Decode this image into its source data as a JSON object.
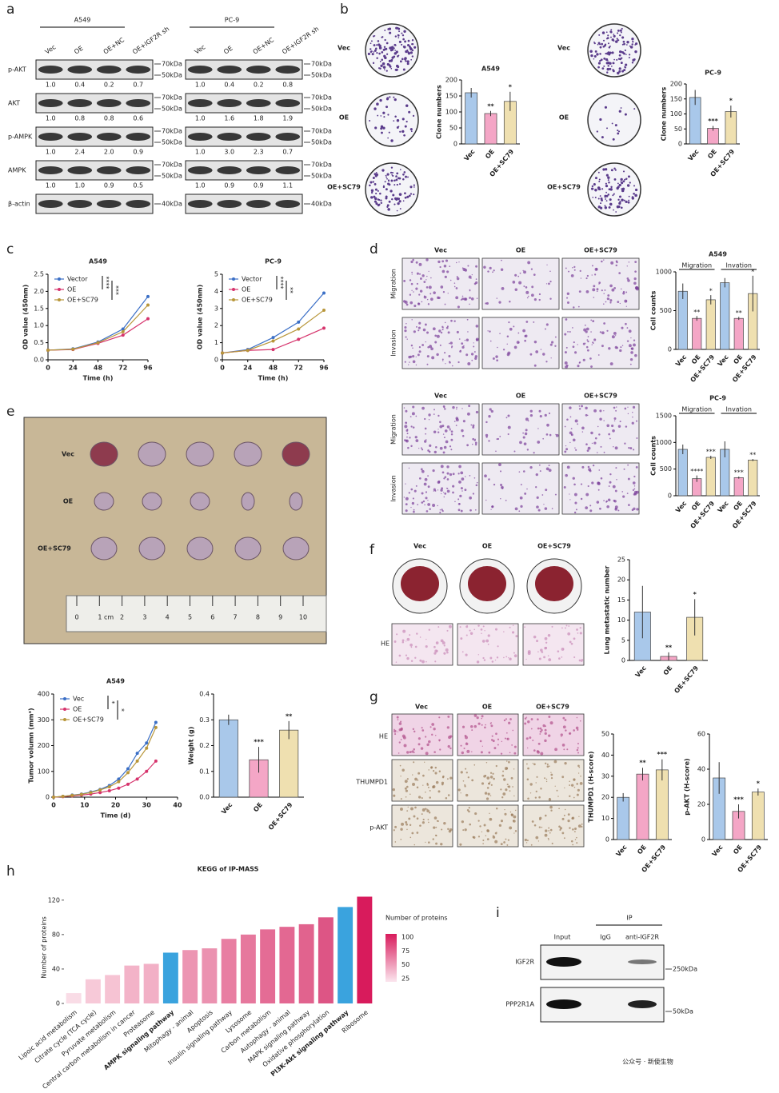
{
  "panels": {
    "a": {
      "letter": "a",
      "groups": [
        {
          "title": "A549",
          "lanes": [
            "Vec",
            "OE",
            "OE+NC",
            "OE+IGF2R sh"
          ],
          "rows": [
            {
              "label": "p-AKT",
              "markers": [
                "70kDa",
                "50kDa"
              ],
              "quant": [
                "1.0",
                "0.4",
                "0.2",
                "0.7"
              ]
            },
            {
              "label": "AKT",
              "markers": [
                "70kDa",
                "50kDa"
              ],
              "quant": [
                "1.0",
                "0.8",
                "0.8",
                "0.6"
              ]
            },
            {
              "label": "p-AMPK",
              "markers": [
                "70kDa",
                "50kDa"
              ],
              "quant": [
                "1.0",
                "2.4",
                "2.0",
                "0.9"
              ]
            },
            {
              "label": "AMPK",
              "markers": [
                "70kDa",
                "50kDa"
              ],
              "quant": [
                "1.0",
                "1.0",
                "0.9",
                "0.5"
              ]
            },
            {
              "label": "β-actin",
              "markers": [
                "40kDa"
              ]
            }
          ]
        },
        {
          "title": "PC-9",
          "lanes": [
            "Vec",
            "OE",
            "OE+NC",
            "OE+IGF2R sh"
          ],
          "rows": [
            {
              "markers": [
                "70kDa",
                "50kDa"
              ],
              "quant": [
                "1.0",
                "0.4",
                "0.2",
                "0.8"
              ]
            },
            {
              "markers": [
                "70kDa",
                "50kDa"
              ],
              "quant": [
                "1.0",
                "1.6",
                "1.8",
                "1.9"
              ]
            },
            {
              "markers": [
                "70kDa",
                "50kDa"
              ],
              "quant": [
                "1.0",
                "3.0",
                "2.3",
                "0.7"
              ]
            },
            {
              "markers": [
                "70kDa",
                "50kDa"
              ],
              "quant": [
                "1.0",
                "0.9",
                "0.9",
                "1.1"
              ]
            },
            {
              "markers": [
                "40kDa"
              ]
            }
          ]
        }
      ]
    },
    "b": {
      "letter": "b",
      "groups": [
        {
          "dish_labels": [
            "Vec",
            "OE",
            "OE+SC79"
          ],
          "chart": {
            "type": "bar",
            "title": "A549",
            "ylabel": "Clone numbers",
            "categories": [
              "Vec",
              "OE",
              "OE+SC79"
            ],
            "values": [
              160,
              95,
              133
            ],
            "errors": [
              15,
              8,
              30
            ],
            "significance": [
              null,
              "**",
              "*"
            ],
            "colors": [
              "#a9c8ea",
              "#f4a6c6",
              "#efe0b0"
            ],
            "ylim": [
              0,
              200
            ],
            "yticks": [
              0,
              50,
              100,
              150,
              200
            ]
          }
        },
        {
          "dish_labels": [
            "Vec",
            "OE",
            "OE+SC79"
          ],
          "chart": {
            "type": "bar",
            "title": "PC-9",
            "ylabel": "Clone numbers",
            "categories": [
              "Vec",
              "OE",
              "OE+SC79"
            ],
            "values": [
              155,
              52,
              108
            ],
            "errors": [
              25,
              8,
              20
            ],
            "significance": [
              null,
              "***",
              "*"
            ],
            "colors": [
              "#a9c8ea",
              "#f4a6c6",
              "#efe0b0"
            ],
            "ylim": [
              0,
              200
            ],
            "yticks": [
              0,
              50,
              100,
              150,
              200
            ]
          }
        }
      ]
    },
    "c": {
      "letter": "c",
      "charts": [
        {
          "type": "line",
          "title": "A549",
          "xlabel": "Time (h)",
          "ylabel": "OD value (450nm)",
          "x": [
            0,
            24,
            48,
            72,
            96
          ],
          "xlim": [
            0,
            96
          ],
          "xticks": [
            0,
            24,
            48,
            72,
            96
          ],
          "ylim": [
            0,
            2.5
          ],
          "yticks": [
            {
              "value": 0,
              "label": "0.0"
            },
            0.5,
            {
              "value": 1,
              "label": "1.0"
            },
            1.5,
            {
              "value": 2,
              "label": "2.0"
            },
            2.5
          ],
          "series": [
            {
              "name": "Vector",
              "color": "#3b6fc6",
              "values": [
                0.28,
                0.32,
                0.52,
                0.9,
                1.85
              ]
            },
            {
              "name": "OE",
              "color": "#d6336c",
              "values": [
                0.28,
                0.3,
                0.48,
                0.72,
                1.2
              ]
            },
            {
              "name": "OE+SC79",
              "color": "#b8963a",
              "values": [
                0.28,
                0.31,
                0.5,
                0.82,
                1.6
              ]
            }
          ],
          "significance": [
            "****",
            "***"
          ]
        },
        {
          "type": "line",
          "title": "PC-9",
          "xlabel": "Time (h)",
          "ylabel": "OD value (450nm)",
          "x": [
            0,
            24,
            48,
            72,
            96
          ],
          "xlim": [
            0,
            96
          ],
          "xticks": [
            0,
            24,
            48,
            72,
            96
          ],
          "ylim": [
            0,
            5
          ],
          "yticks": [
            0,
            1,
            2,
            3,
            4,
            5
          ],
          "series": [
            {
              "name": "Vector",
              "color": "#3b6fc6",
              "values": [
                0.4,
                0.6,
                1.3,
                2.2,
                3.9
              ]
            },
            {
              "name": "OE",
              "color": "#d6336c",
              "values": [
                0.4,
                0.55,
                0.6,
                1.2,
                1.85
              ]
            },
            {
              "name": "OE+SC79",
              "color": "#b8963a",
              "values": [
                0.4,
                0.55,
                1.1,
                1.8,
                2.9
              ]
            }
          ],
          "significance": [
            "****",
            "**"
          ]
        }
      ]
    },
    "d": {
      "letter": "d",
      "sets": [
        {
          "columns": [
            "Vec",
            "OE",
            "OE+SC79"
          ],
          "rows": [
            "Migration",
            "Invasion"
          ],
          "chart": {
            "type": "grouped_bar",
            "title": "A549",
            "ylabel": "Cell counts",
            "categories": [
              "Vec",
              "OE",
              "OE+SC79"
            ],
            "colors": [
              "#a9c8ea",
              "#f4a6c6",
              "#efe0b0"
            ],
            "groups": [
              {
                "name": "Migration",
                "values": [
                  750,
                  400,
                  640
                ],
                "errors": [
                  100,
                  30,
                  60
                ],
                "significance": [
                  null,
                  "**",
                  "*"
                ]
              },
              {
                "name": "Invation",
                "values": [
                  860,
                  400,
                  720
                ],
                "errors": [
                  60,
                  20,
                  230
                ],
                "significance": [
                  null,
                  "**",
                  "*"
                ]
              }
            ],
            "ylim": [
              0,
              1000
            ],
            "yticks": [
              0,
              500,
              1000
            ]
          }
        },
        {
          "columns": [
            "Vec",
            "OE",
            "OE+SC79"
          ],
          "rows": [
            "Migration",
            "Invasion"
          ],
          "chart": {
            "type": "grouped_bar",
            "title": "PC-9",
            "ylabel": "Cell counts",
            "categories": [
              "Vec",
              "OE",
              "OE+SC79"
            ],
            "colors": [
              "#a9c8ea",
              "#f4a6c6",
              "#efe0b0"
            ],
            "groups": [
              {
                "name": "Migration",
                "values": [
                  870,
                  320,
                  720
                ],
                "errors": [
                  90,
                  60,
                  30
                ],
                "significance": [
                  null,
                  "****",
                  "***"
                ]
              },
              {
                "name": "Invation",
                "values": [
                  870,
                  340,
                  670
                ],
                "errors": [
                  150,
                  20,
                  20
                ],
                "significance": [
                  null,
                  "***",
                  "**"
                ]
              }
            ],
            "ylim": [
              0,
              1500
            ],
            "yticks": [
              0,
              500,
              1000,
              1500
            ]
          }
        }
      ]
    },
    "e": {
      "letter": "e",
      "photo_labels": [
        "Vec",
        "OE",
        "OE+SC79"
      ],
      "ruler": [
        "0",
        "1 cm",
        "2",
        "3",
        "4",
        "5",
        "6",
        "7",
        "8",
        "9",
        "10"
      ],
      "volume_chart": {
        "type": "line",
        "title": "A549",
        "xlabel": "Time (d)",
        "ylabel": "Tumor volumn (mm³)",
        "x": [
          0,
          3,
          6,
          9,
          12,
          15,
          18,
          21,
          24,
          27,
          30,
          33
        ],
        "xlim": [
          0,
          40
        ],
        "xticks": [
          0,
          10,
          20,
          30,
          40
        ],
        "ylim": [
          0,
          400
        ],
        "yticks": [
          0,
          100,
          200,
          300,
          400
        ],
        "series": [
          {
            "name": "Vec",
            "color": "#3b6fc6",
            "values": [
              0,
              3,
              8,
              12,
              20,
              30,
              45,
              70,
              110,
              170,
              210,
              290
            ]
          },
          {
            "name": "OE",
            "color": "#d6336c",
            "values": [
              0,
              2,
              5,
              8,
              12,
              18,
              25,
              35,
              50,
              70,
              100,
              140
            ]
          },
          {
            "name": "OE+SC79",
            "color": "#b8963a",
            "values": [
              0,
              3,
              7,
              11,
              18,
              28,
              40,
              60,
              95,
              140,
              190,
              270
            ]
          }
        ],
        "significance": [
          "*",
          "*"
        ]
      },
      "weight_chart": {
        "type": "bar",
        "ylabel": "Weight (g)",
        "categories": [
          "Vec",
          "OE",
          "OE+SC79"
        ],
        "values": [
          0.3,
          0.145,
          0.26
        ],
        "errors": [
          0.02,
          0.05,
          0.035
        ],
        "significance": [
          null,
          "***",
          "**"
        ],
        "colors": [
          "#a9c8ea",
          "#f4a6c6",
          "#efe0b0"
        ],
        "ylim": [
          0,
          0.4
        ],
        "yticks": [
          {
            "value": 0,
            "label": "0.0"
          },
          0.1,
          0.2,
          0.3,
          0.4
        ]
      }
    },
    "f": {
      "letter": "f",
      "columns": [
        "Vec",
        "OE",
        "OE+SC79"
      ],
      "row_label": "HE",
      "chart": {
        "type": "bar",
        "ylabel": "Lung metastatic number",
        "categories": [
          "Vec",
          "OE",
          "OE+SC79"
        ],
        "values": [
          12,
          1,
          10.7
        ],
        "errors": [
          6.5,
          1,
          4.5
        ],
        "significance": [
          null,
          "**",
          "*"
        ],
        "colors": [
          "#a9c8ea",
          "#f4a6c6",
          "#efe0b0"
        ],
        "ylim": [
          0,
          25
        ],
        "yticks": [
          0,
          5,
          10,
          15,
          20,
          25
        ]
      }
    },
    "g": {
      "letter": "g",
      "columns": [
        "Vec",
        "OE",
        "OE+SC79"
      ],
      "rows": [
        "HE",
        "THUMPD1",
        "p-AKT"
      ],
      "charts": [
        {
          "type": "bar",
          "ylabel": "THUMPD1 (H-score)",
          "categories": [
            "Vec",
            "OE",
            "OE+SC79"
          ],
          "values": [
            20,
            31,
            33
          ],
          "errors": [
            2,
            3,
            5
          ],
          "significance": [
            null,
            "**",
            "***"
          ],
          "colors": [
            "#a9c8ea",
            "#f4a6c6",
            "#efe0b0"
          ],
          "ylim": [
            0,
            50
          ],
          "yticks": [
            0,
            10,
            20,
            30,
            40,
            50
          ]
        },
        {
          "type": "bar",
          "ylabel": "p-AKT (H-score)",
          "categories": [
            "Vec",
            "OE",
            "OE+SC79"
          ],
          "values": [
            35,
            16,
            27
          ],
          "errors": [
            9,
            4,
            2
          ],
          "significance": [
            null,
            "***",
            "*"
          ],
          "colors": [
            "#a9c8ea",
            "#f4a6c6",
            "#efe0b0"
          ],
          "ylim": [
            0,
            60
          ],
          "yticks": [
            0,
            20,
            40,
            60
          ]
        }
      ]
    },
    "h": {
      "letter": "h",
      "chart": {
        "type": "bar",
        "title": "KEGG of IP-MASS",
        "ylabel": "Number of proteins",
        "categories": [
          "Lipoic acid metabolism",
          "Citrate cycle (TCA cycle)",
          "Pyruvate metabolism",
          "Central carbon metabolism in cancer",
          "Proteasome",
          "AMPK signaling pathway",
          "Mitophagy - animal",
          "Apoptosis",
          "Insulin signaling pathway",
          "Lysosome",
          "Carbon metabolism",
          "Autophagy - animal",
          "MAPK signaling pathway",
          "Oxidative phosphorylation",
          "PI3K-Akt signaling pathway",
          "Ribosome"
        ],
        "values": [
          12,
          28,
          33,
          44,
          46,
          59,
          62,
          64,
          75,
          80,
          86,
          89,
          92,
          100,
          112,
          124
        ],
        "colors": [
          "#f9dce6",
          "#f7c9d8",
          "#f6c3d3",
          "#f3b3c8",
          "#f2b0c6",
          "#3aa3de",
          "#ec95b2",
          "#eb92b0",
          "#e87ea2",
          "#e6789d",
          "#e46c95",
          "#e36892",
          "#e1638e",
          "#dd5585",
          "#3aa3de",
          "#d81b5c"
        ],
        "highlight_color": "#3aa3de",
        "ylim": [
          0,
          130
        ],
        "yticks": [
          0,
          40,
          80,
          120
        ],
        "legend_title": "Number of proteins",
        "legend_ticks": [
          25,
          50,
          75,
          100
        ]
      }
    },
    "i": {
      "letter": "i",
      "ip_label": "IP",
      "lanes": [
        "Input",
        "IgG",
        "anti-IGF2R"
      ],
      "rows": [
        {
          "label": "IGF2R",
          "marker": "250kDa"
        },
        {
          "label": "PPP2R1A",
          "marker": "50kDa"
        }
      ]
    }
  },
  "watermark": "公众号 · 新使生物"
}
